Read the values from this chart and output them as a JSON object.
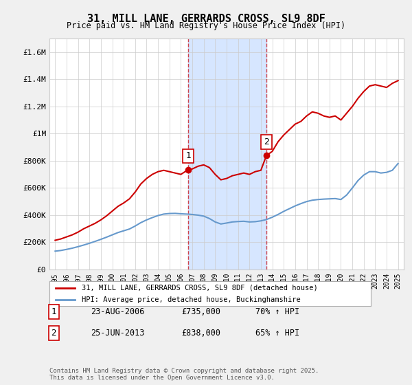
{
  "title": "31, MILL LANE, GERRARDS CROSS, SL9 8DF",
  "subtitle": "Price paid vs. HM Land Registry's House Price Index (HPI)",
  "ylabel": "",
  "xlabel": "",
  "ylim": [
    0,
    1700000
  ],
  "yticks": [
    0,
    200000,
    400000,
    600000,
    800000,
    1000000,
    1200000,
    1400000,
    1600000
  ],
  "ytick_labels": [
    "£0",
    "£200K",
    "£400K",
    "£600K",
    "£800K",
    "£1M",
    "£1.2M",
    "£1.4M",
    "£1.6M"
  ],
  "background_color": "#f0f0f0",
  "plot_bg_color": "#ffffff",
  "sale1_year": 2006.645,
  "sale1_price": 735000,
  "sale1_label": "1",
  "sale1_date": "23-AUG-2006",
  "sale1_hpi": "70% ↑ HPI",
  "sale2_year": 2013.481,
  "sale2_price": 838000,
  "sale2_label": "2",
  "sale2_date": "25-JUN-2013",
  "sale2_hpi": "65% ↑ HPI",
  "red_color": "#cc0000",
  "blue_color": "#6699cc",
  "shade_color": "#cce0ff",
  "legend1": "31, MILL LANE, GERRARDS CROSS, SL9 8DF (detached house)",
  "legend2": "HPI: Average price, detached house, Buckinghamshire",
  "footer": "Contains HM Land Registry data © Crown copyright and database right 2025.\nThis data is licensed under the Open Government Licence v3.0.",
  "red_years": [
    1995.0,
    1995.5,
    1996.0,
    1996.5,
    1997.0,
    1997.5,
    1998.0,
    1998.5,
    1999.0,
    1999.5,
    2000.0,
    2000.5,
    2001.0,
    2001.5,
    2002.0,
    2002.5,
    2003.0,
    2003.5,
    2004.0,
    2004.5,
    2005.0,
    2005.5,
    2006.0,
    2006.645,
    2007.0,
    2007.5,
    2008.0,
    2008.5,
    2009.0,
    2009.5,
    2010.0,
    2010.5,
    2011.0,
    2011.5,
    2012.0,
    2012.5,
    2013.0,
    2013.481,
    2014.0,
    2014.5,
    2015.0,
    2015.5,
    2016.0,
    2016.5,
    2017.0,
    2017.5,
    2018.0,
    2018.5,
    2019.0,
    2019.5,
    2020.0,
    2020.5,
    2021.0,
    2021.5,
    2022.0,
    2022.5,
    2023.0,
    2023.5,
    2024.0,
    2024.5,
    2025.0
  ],
  "red_values": [
    215000,
    225000,
    240000,
    255000,
    275000,
    300000,
    320000,
    340000,
    365000,
    395000,
    430000,
    465000,
    490000,
    520000,
    570000,
    630000,
    670000,
    700000,
    720000,
    730000,
    720000,
    710000,
    700000,
    735000,
    740000,
    760000,
    770000,
    750000,
    700000,
    660000,
    670000,
    690000,
    700000,
    710000,
    700000,
    720000,
    730000,
    838000,
    870000,
    940000,
    990000,
    1030000,
    1070000,
    1090000,
    1130000,
    1160000,
    1150000,
    1130000,
    1120000,
    1130000,
    1100000,
    1150000,
    1200000,
    1260000,
    1310000,
    1350000,
    1360000,
    1350000,
    1340000,
    1370000,
    1390000
  ],
  "blue_years": [
    1995.0,
    1995.5,
    1996.0,
    1996.5,
    1997.0,
    1997.5,
    1998.0,
    1998.5,
    1999.0,
    1999.5,
    2000.0,
    2000.5,
    2001.0,
    2001.5,
    2002.0,
    2002.5,
    2003.0,
    2003.5,
    2004.0,
    2004.5,
    2005.0,
    2005.5,
    2006.0,
    2006.5,
    2007.0,
    2007.5,
    2008.0,
    2008.5,
    2009.0,
    2009.5,
    2010.0,
    2010.5,
    2011.0,
    2011.5,
    2012.0,
    2012.5,
    2013.0,
    2013.5,
    2014.0,
    2014.5,
    2015.0,
    2015.5,
    2016.0,
    2016.5,
    2017.0,
    2017.5,
    2018.0,
    2018.5,
    2019.0,
    2019.5,
    2020.0,
    2020.5,
    2021.0,
    2021.5,
    2022.0,
    2022.5,
    2023.0,
    2023.5,
    2024.0,
    2024.5,
    2025.0
  ],
  "blue_values": [
    135000,
    140000,
    148000,
    157000,
    168000,
    180000,
    193000,
    207000,
    222000,
    238000,
    255000,
    272000,
    285000,
    298000,
    320000,
    345000,
    365000,
    382000,
    397000,
    408000,
    412000,
    413000,
    410000,
    408000,
    405000,
    400000,
    393000,
    375000,
    350000,
    335000,
    342000,
    350000,
    353000,
    355000,
    350000,
    352000,
    358000,
    368000,
    385000,
    405000,
    428000,
    448000,
    468000,
    485000,
    500000,
    510000,
    515000,
    518000,
    520000,
    522000,
    515000,
    548000,
    600000,
    655000,
    695000,
    720000,
    720000,
    710000,
    715000,
    730000,
    780000
  ]
}
